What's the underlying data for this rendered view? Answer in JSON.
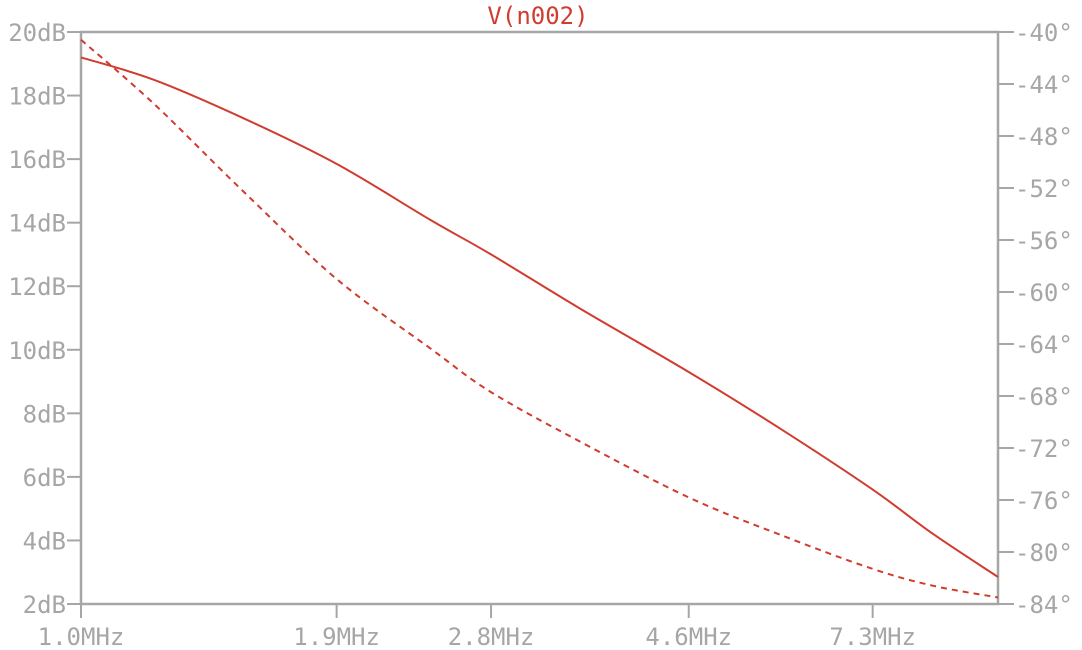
{
  "chart_data": {
    "type": "line",
    "title": "V(n002)",
    "x_scale": "log",
    "x_ticks": [
      {
        "value": 1.0,
        "label": "1.0MHz"
      },
      {
        "value": 1.9,
        "label": "1.9MHz"
      },
      {
        "value": 2.8,
        "label": "2.8MHz"
      },
      {
        "value": 4.6,
        "label": "4.6MHz"
      },
      {
        "value": 7.3,
        "label": "7.3MHz"
      }
    ],
    "xlim": [
      1.0,
      10.0
    ],
    "y_left": {
      "unit": "dB",
      "ylim": [
        2,
        20
      ],
      "ticks": [
        {
          "value": 20,
          "label": "20dB"
        },
        {
          "value": 18,
          "label": "18dB"
        },
        {
          "value": 16,
          "label": "16dB"
        },
        {
          "value": 14,
          "label": "14dB"
        },
        {
          "value": 12,
          "label": "12dB"
        },
        {
          "value": 10,
          "label": "10dB"
        },
        {
          "value": 8,
          "label": "8dB"
        },
        {
          "value": 6,
          "label": "6dB"
        },
        {
          "value": 4,
          "label": "4dB"
        },
        {
          "value": 2,
          "label": "2dB"
        }
      ]
    },
    "y_right": {
      "unit": "°",
      "ylim": [
        -84,
        -40
      ],
      "ticks": [
        {
          "value": -40,
          "label": "-40°"
        },
        {
          "value": -44,
          "label": "-44°"
        },
        {
          "value": -48,
          "label": "-48°"
        },
        {
          "value": -52,
          "label": "-52°"
        },
        {
          "value": -56,
          "label": "-56°"
        },
        {
          "value": -60,
          "label": "-60°"
        },
        {
          "value": -64,
          "label": "-64°"
        },
        {
          "value": -68,
          "label": "-68°"
        },
        {
          "value": -72,
          "label": "-72°"
        },
        {
          "value": -76,
          "label": "-76°"
        },
        {
          "value": -80,
          "label": "-80°"
        },
        {
          "value": -84,
          "label": "-84°"
        }
      ]
    },
    "series": [
      {
        "quantity": "magnitude",
        "axis": "left",
        "style": "solid",
        "color": "#d03c2f",
        "x": [
          1.0,
          1.2,
          1.5,
          1.9,
          2.4,
          2.8,
          3.5,
          4.6,
          5.8,
          7.3,
          8.5,
          10.0
        ],
        "y": [
          19.2,
          18.5,
          17.3,
          15.85,
          14.1,
          13.0,
          11.3,
          9.3,
          7.5,
          5.6,
          4.2,
          2.85
        ]
      },
      {
        "quantity": "phase",
        "axis": "right",
        "style": "dashed",
        "color": "#d03c2f",
        "x": [
          1.0,
          1.2,
          1.5,
          1.9,
          2.4,
          2.8,
          3.5,
          4.6,
          5.8,
          7.3,
          8.5,
          10.0
        ],
        "y": [
          -40.6,
          -45.5,
          -52.2,
          -59.0,
          -64.3,
          -67.7,
          -71.5,
          -75.8,
          -78.7,
          -81.3,
          -82.6,
          -83.5
        ]
      }
    ],
    "colors": {
      "trace": "#d03c2f",
      "frame": "#a6a6a6",
      "label": "#a6a6a6",
      "background": "#ffffff"
    }
  }
}
